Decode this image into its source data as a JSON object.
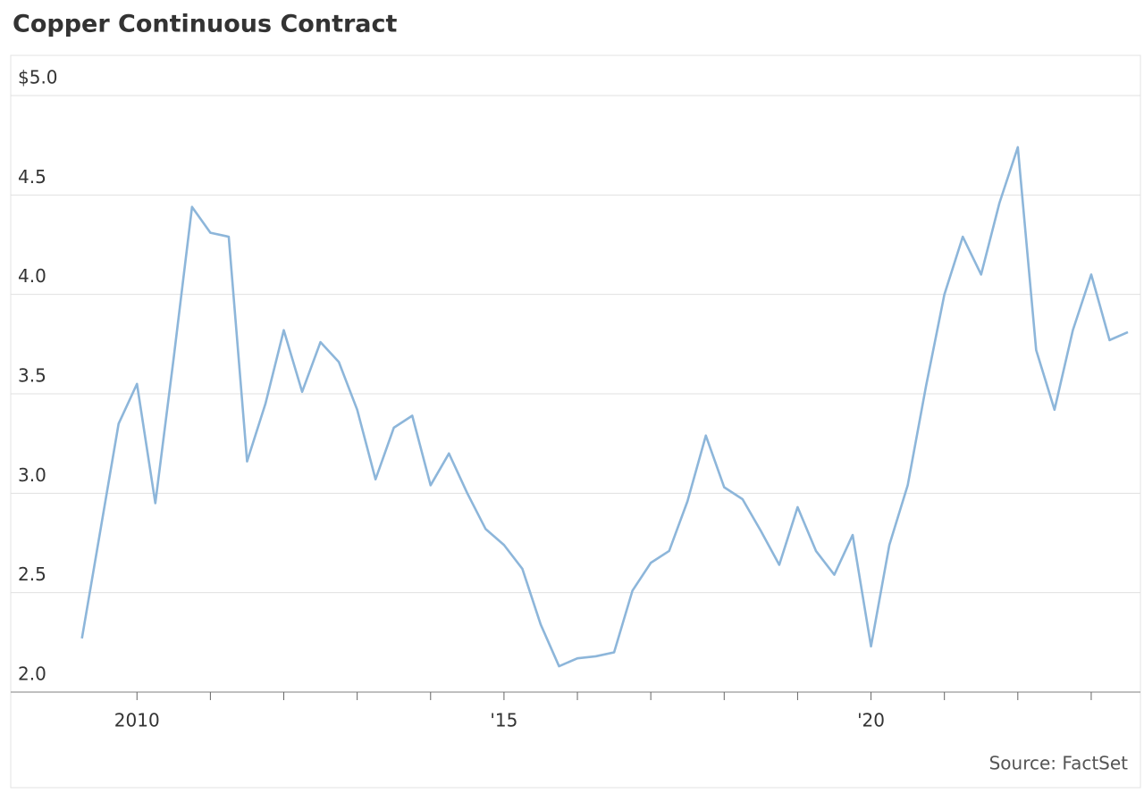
{
  "chart_data": {
    "type": "line",
    "title": "Copper Continuous Contract",
    "source": "Source: FactSet",
    "x": [
      2009.25,
      2009.5,
      2009.75,
      2010,
      2010.25,
      2010.5,
      2010.75,
      2011,
      2011.25,
      2011.5,
      2011.75,
      2012,
      2012.25,
      2012.5,
      2012.75,
      2013,
      2013.25,
      2013.5,
      2013.75,
      2014,
      2014.25,
      2014.5,
      2014.75,
      2015,
      2015.25,
      2015.5,
      2015.75,
      2016,
      2016.25,
      2016.5,
      2016.75,
      2017,
      2017.25,
      2017.5,
      2017.75,
      2018,
      2018.25,
      2018.5,
      2018.75,
      2019,
      2019.25,
      2019.5,
      2019.75,
      2020,
      2020.25,
      2020.5,
      2020.75,
      2021,
      2021.25,
      2021.5,
      2021.75,
      2022,
      2022.25,
      2022.5,
      2022.75,
      2023,
      2023.25,
      2023.5
    ],
    "series": [
      {
        "color": "#8db6da",
        "values": [
          2.27,
          2.81,
          3.35,
          3.55,
          2.95,
          3.68,
          4.44,
          4.31,
          4.29,
          3.16,
          3.45,
          3.82,
          3.51,
          3.76,
          3.66,
          3.42,
          3.07,
          3.33,
          3.39,
          3.04,
          3.2,
          3.0,
          2.82,
          2.74,
          2.62,
          2.34,
          2.13,
          2.17,
          2.18,
          2.2,
          2.51,
          2.65,
          2.71,
          2.96,
          3.29,
          3.03,
          2.97,
          2.81,
          2.64,
          2.93,
          2.71,
          2.59,
          2.79,
          2.23,
          2.74,
          3.04,
          3.54,
          4.0,
          4.29,
          4.1,
          4.46,
          4.74,
          3.72,
          3.42,
          3.82,
          4.1,
          3.77,
          3.81
        ]
      }
    ],
    "xlim": [
      2008.28,
      2023.5
    ],
    "xticks": [
      {
        "value": 2010,
        "label": "2010"
      },
      {
        "value": 2015,
        "label": "'15"
      },
      {
        "value": 2020,
        "label": "'20"
      }
    ],
    "x_minor_ticks": [
      2011,
      2012,
      2013,
      2014,
      2016,
      2017,
      2018,
      2019,
      2021,
      2022,
      2023
    ],
    "ylim": [
      2.0,
      5.0
    ],
    "yticks": [
      {
        "value": 2.0,
        "label": "2.0"
      },
      {
        "value": 2.5,
        "label": "2.5"
      },
      {
        "value": 3.0,
        "label": "3.0"
      },
      {
        "value": 3.5,
        "label": "3.5"
      },
      {
        "value": 4.0,
        "label": "4.0"
      },
      {
        "value": 4.5,
        "label": "4.5"
      },
      {
        "value": 5.0,
        "label": "$5.0"
      }
    ],
    "grid": true
  }
}
